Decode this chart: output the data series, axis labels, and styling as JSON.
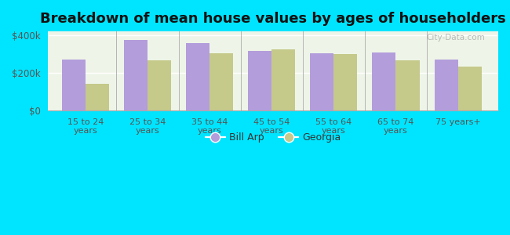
{
  "title": "Breakdown of mean house values by ages of householders",
  "categories": [
    "15 to 24\nyears",
    "25 to 34\nyears",
    "35 to 44\nyears",
    "45 to 54\nyears",
    "55 to 64\nyears",
    "65 to 74\nyears",
    "75 years+"
  ],
  "bill_arp": [
    270000,
    375000,
    360000,
    315000,
    305000,
    310000,
    270000
  ],
  "georgia": [
    140000,
    265000,
    305000,
    325000,
    300000,
    265000,
    235000
  ],
  "bill_arp_color": "#b39ddb",
  "georgia_color": "#c5c98a",
  "background_color": "#e8f5e9",
  "outer_background": "#00e5ff",
  "ylim": [
    0,
    420000
  ],
  "yticks": [
    0,
    200000,
    400000
  ],
  "ytick_labels": [
    "$0",
    "$200k",
    "$400k"
  ],
  "legend_labels": [
    "Bill Arp",
    "Georgia"
  ],
  "bar_width": 0.38,
  "title_fontsize": 13
}
